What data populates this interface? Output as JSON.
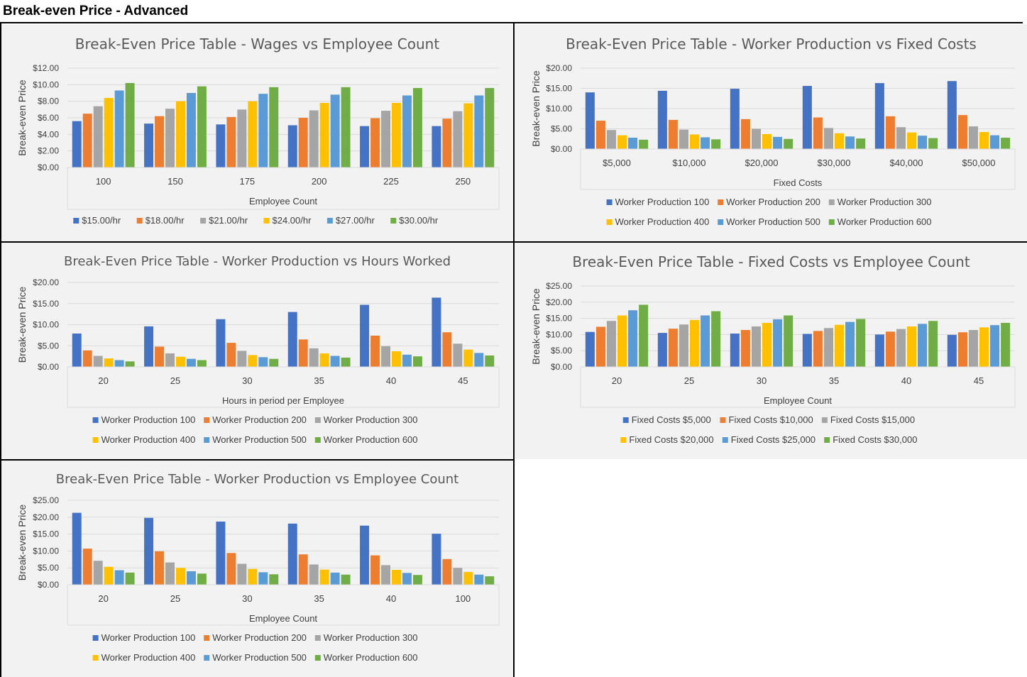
{
  "sheet": {
    "title": "Break-even Price - Advanced"
  },
  "palette": [
    "#4472c4",
    "#ed7d31",
    "#a5a5a5",
    "#ffc000",
    "#5b9bd5",
    "#70ad47"
  ],
  "chart_data": [
    {
      "id": "wages",
      "type": "bar",
      "title": "Break-Even Price Table - Wages vs Employee Count",
      "xlabel": "Employee Count",
      "ylabel": "Break-even Price",
      "ylim": [
        0,
        12
      ],
      "yticks": [
        0,
        2,
        4,
        6,
        8,
        10,
        12
      ],
      "tick_format": "dollar",
      "grid": true,
      "legend_position": "bottom",
      "categories": [
        "100",
        "150",
        "175",
        "200",
        "225",
        "250"
      ],
      "series": [
        {
          "name": "$15.00/hr",
          "values": [
            5.6,
            5.3,
            5.2,
            5.1,
            5.0,
            5.0
          ]
        },
        {
          "name": "$18.00/hr",
          "values": [
            6.5,
            6.2,
            6.1,
            6.0,
            5.95,
            5.9
          ]
        },
        {
          "name": "$21.00/hr",
          "values": [
            7.4,
            7.1,
            7.0,
            6.9,
            6.85,
            6.8
          ]
        },
        {
          "name": "$24.00/hr",
          "values": [
            8.4,
            8.0,
            8.0,
            7.8,
            7.8,
            7.75
          ]
        },
        {
          "name": "$27.00/hr",
          "values": [
            9.3,
            9.0,
            8.9,
            8.8,
            8.7,
            8.7
          ]
        },
        {
          "name": "$30.00/hr",
          "values": [
            10.2,
            9.8,
            9.7,
            9.7,
            9.6,
            9.6
          ]
        }
      ]
    },
    {
      "id": "prod-fixed",
      "type": "bar",
      "title": "Break-Even Price Table - Worker Production vs Fixed Costs",
      "xlabel": "Fixed Costs",
      "ylabel": "Break-even Price",
      "ylim": [
        0,
        20
      ],
      "yticks": [
        0,
        5,
        10,
        15,
        20
      ],
      "tick_format": "dollar",
      "grid": true,
      "legend_position": "bottom",
      "categories": [
        "$5,000",
        "$10,000",
        "$20,000",
        "$30,000",
        "$40,000",
        "$50,000"
      ],
      "series": [
        {
          "name": "Worker Production 100",
          "values": [
            14.0,
            14.4,
            14.9,
            15.6,
            16.3,
            16.8
          ]
        },
        {
          "name": "Worker Production 200",
          "values": [
            7.0,
            7.2,
            7.4,
            7.8,
            8.1,
            8.4
          ]
        },
        {
          "name": "Worker Production 300",
          "values": [
            4.7,
            4.8,
            5.0,
            5.2,
            5.4,
            5.6
          ]
        },
        {
          "name": "Worker Production 400",
          "values": [
            3.4,
            3.6,
            3.7,
            3.9,
            4.1,
            4.2
          ]
        },
        {
          "name": "Worker Production 500",
          "values": [
            2.8,
            2.9,
            3.0,
            3.1,
            3.3,
            3.4
          ]
        },
        {
          "name": "Worker Production 600",
          "values": [
            2.3,
            2.4,
            2.5,
            2.6,
            2.7,
            2.8
          ]
        }
      ]
    },
    {
      "id": "prod-hours",
      "type": "bar",
      "title": "Break-Even Price Table - Worker Production vs Hours Worked",
      "xlabel": "Hours in period per Employee",
      "ylabel": "Break-even Price",
      "ylim": [
        0,
        20
      ],
      "yticks": [
        0,
        5,
        10,
        15,
        20
      ],
      "tick_format": "dollar",
      "grid": true,
      "legend_position": "bottom",
      "categories": [
        "20",
        "25",
        "30",
        "35",
        "40",
        "45"
      ],
      "series": [
        {
          "name": "Worker Production 100",
          "values": [
            7.9,
            9.6,
            11.3,
            13.0,
            14.7,
            16.4
          ]
        },
        {
          "name": "Worker Production 200",
          "values": [
            3.9,
            4.8,
            5.7,
            6.5,
            7.4,
            8.2
          ]
        },
        {
          "name": "Worker Production 300",
          "values": [
            2.6,
            3.2,
            3.8,
            4.4,
            4.9,
            5.5
          ]
        },
        {
          "name": "Worker Production 400",
          "values": [
            2.0,
            2.4,
            2.8,
            3.2,
            3.7,
            4.1
          ]
        },
        {
          "name": "Worker Production 500",
          "values": [
            1.6,
            1.9,
            2.3,
            2.6,
            2.9,
            3.3
          ]
        },
        {
          "name": "Worker Production 600",
          "values": [
            1.3,
            1.6,
            1.9,
            2.2,
            2.5,
            2.7
          ]
        }
      ]
    },
    {
      "id": "fixed-emp",
      "type": "bar",
      "title": "Break-Even Price Table - Fixed Costs vs Employee Count",
      "xlabel": "Employee Count",
      "ylabel": "Break-even Price",
      "ylim": [
        0,
        25
      ],
      "yticks": [
        0,
        5,
        10,
        15,
        20,
        25
      ],
      "tick_format": "dollar",
      "grid": true,
      "legend_position": "bottom",
      "categories": [
        "20",
        "25",
        "30",
        "35",
        "40",
        "45"
      ],
      "series": [
        {
          "name": "Fixed Costs $5,000",
          "values": [
            10.8,
            10.5,
            10.3,
            10.2,
            10.0,
            9.9
          ]
        },
        {
          "name": "Fixed Costs $10,000",
          "values": [
            12.4,
            11.8,
            11.4,
            11.1,
            10.9,
            10.7
          ]
        },
        {
          "name": "Fixed Costs $15,000",
          "values": [
            14.2,
            13.1,
            12.5,
            12.0,
            11.7,
            11.4
          ]
        },
        {
          "name": "Fixed Costs $20,000",
          "values": [
            15.9,
            14.5,
            13.6,
            13.0,
            12.5,
            12.2
          ]
        },
        {
          "name": "Fixed Costs $25,000",
          "values": [
            17.5,
            15.9,
            14.7,
            13.9,
            13.3,
            12.9
          ]
        },
        {
          "name": "Fixed Costs $30,000",
          "values": [
            19.2,
            17.2,
            15.9,
            14.8,
            14.2,
            13.6
          ]
        }
      ]
    },
    {
      "id": "prod-emp",
      "type": "bar",
      "title": "Break-Even Price Table - Worker Production vs Employee Count",
      "xlabel": "Employee Count",
      "ylabel": "Break-even Price",
      "ylim": [
        0,
        25
      ],
      "yticks": [
        0,
        5,
        10,
        15,
        20,
        25
      ],
      "tick_format": "dollar",
      "grid": true,
      "legend_position": "bottom",
      "categories": [
        "20",
        "25",
        "30",
        "35",
        "40",
        "100"
      ],
      "series": [
        {
          "name": "Worker Production 100",
          "values": [
            21.3,
            19.8,
            18.7,
            18.1,
            17.5,
            15.1
          ]
        },
        {
          "name": "Worker Production 200",
          "values": [
            10.7,
            9.9,
            9.4,
            9.0,
            8.7,
            7.6
          ]
        },
        {
          "name": "Worker Production 300",
          "values": [
            7.1,
            6.6,
            6.2,
            6.0,
            5.8,
            5.0
          ]
        },
        {
          "name": "Worker Production 400",
          "values": [
            5.3,
            5.0,
            4.7,
            4.5,
            4.4,
            3.8
          ]
        },
        {
          "name": "Worker Production 500",
          "values": [
            4.3,
            4.0,
            3.7,
            3.6,
            3.5,
            3.0
          ]
        },
        {
          "name": "Worker Production 600",
          "values": [
            3.6,
            3.3,
            3.1,
            3.0,
            2.9,
            2.5
          ]
        }
      ]
    }
  ]
}
